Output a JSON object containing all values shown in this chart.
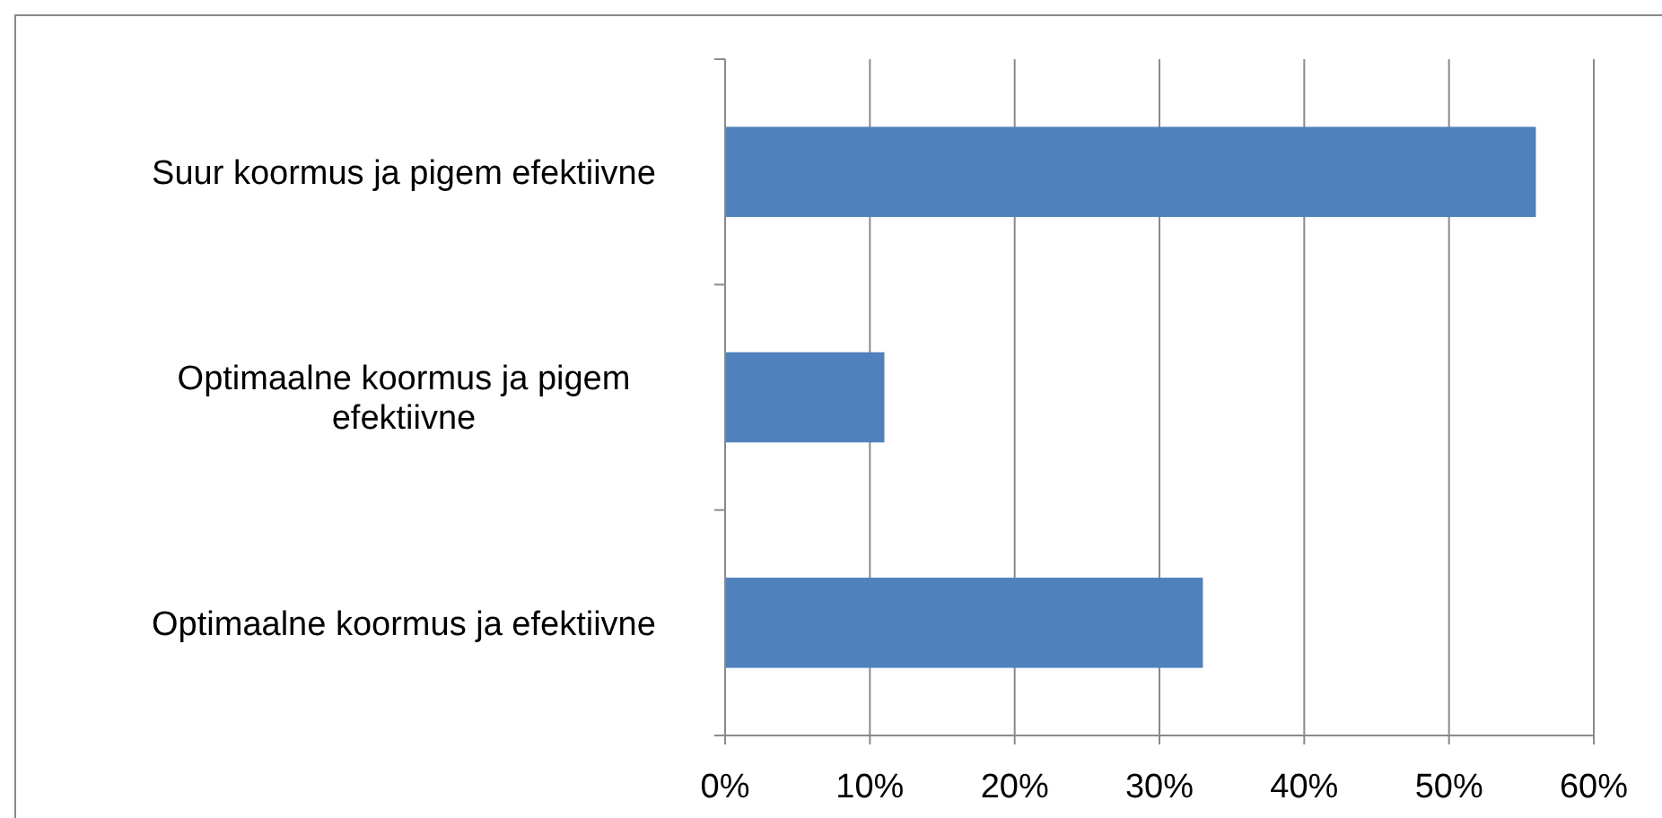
{
  "chart_data": {
    "type": "bar",
    "orientation": "horizontal",
    "categories": [
      "Suur koormus ja pigem efektiivne",
      "Optimaalne koormus ja pigem efektiivne",
      "Optimaalne koormus ja efektiivne"
    ],
    "values": [
      56,
      11,
      33
    ],
    "color": "#4f81bd",
    "xlim": [
      0,
      60
    ],
    "xticks": [
      {
        "value": 0,
        "label": "0%"
      },
      {
        "value": 10,
        "label": "10%"
      },
      {
        "value": 20,
        "label": "20%"
      },
      {
        "value": 30,
        "label": "30%"
      },
      {
        "value": 40,
        "label": "40%"
      },
      {
        "value": 50,
        "label": "50%"
      },
      {
        "value": 60,
        "label": "60%"
      }
    ],
    "grid": "x"
  }
}
